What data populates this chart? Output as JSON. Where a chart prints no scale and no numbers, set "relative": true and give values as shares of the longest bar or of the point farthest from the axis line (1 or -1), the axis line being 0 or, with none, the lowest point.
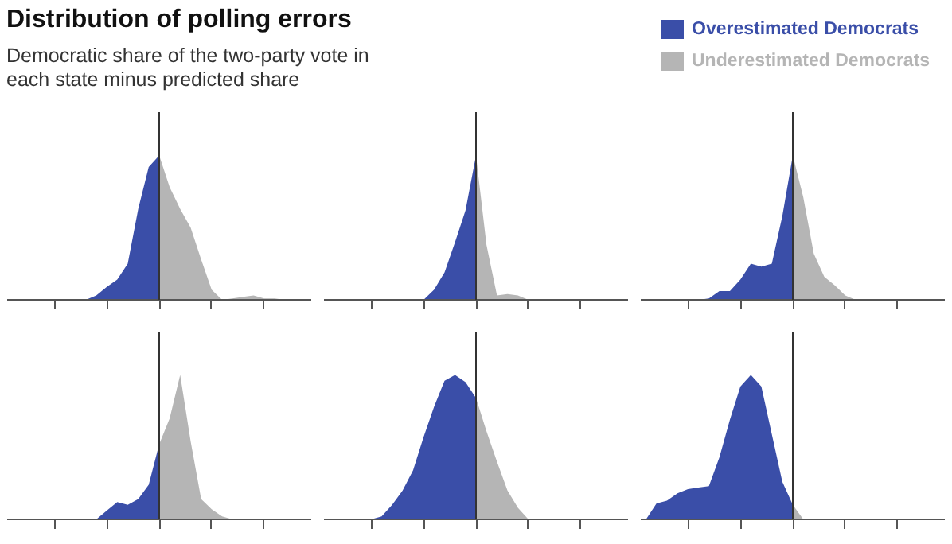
{
  "chart_data": [
    {
      "type": "area",
      "title": "Distribution of polling errors",
      "subtitle": "Democratic share of the two-party vote in each state minus predicted share",
      "relative": true,
      "categories": [
        null,
        null,
        null,
        null,
        null,
        null,
        null,
        null,
        null,
        null,
        null,
        null,
        null,
        null,
        null,
        null,
        null,
        null,
        null,
        null,
        null,
        null,
        null,
        null,
        null,
        null,
        null,
        null,
        null
      ],
      "series": [
        {
          "color": "#3a4ea8",
          "values": [
            0,
            0,
            0,
            0,
            0,
            0,
            0,
            0,
            0.03,
            0.09,
            0.14,
            0.25,
            0.63,
            0.92,
            1,
            null,
            null,
            null,
            null,
            null,
            null,
            null,
            null,
            null,
            null,
            null,
            null,
            null,
            null
          ]
        },
        {
          "color": "#b5b5b5",
          "values": [
            null,
            null,
            null,
            null,
            null,
            null,
            null,
            null,
            null,
            null,
            null,
            null,
            null,
            null,
            1,
            0.78,
            0.63,
            0.5,
            0.28,
            0.07,
            0,
            0.01,
            0.02,
            0.03,
            0.01,
            0.01,
            0,
            0,
            0
          ]
        }
      ]
    },
    {
      "type": "area",
      "relative": true,
      "categories": [
        null,
        null,
        null,
        null,
        null,
        null,
        null,
        null,
        null,
        null,
        null,
        null,
        null,
        null,
        null,
        null,
        null,
        null,
        null,
        null,
        null,
        null,
        null,
        null,
        null,
        null,
        null,
        null,
        null
      ],
      "series": [
        {
          "color": "#3a4ea8",
          "values": [
            0,
            0,
            0,
            0,
            0,
            0,
            0,
            0,
            0,
            0,
            0.07,
            0.19,
            0.4,
            0.62,
            1,
            null,
            null,
            null,
            null,
            null,
            null,
            null,
            null,
            null,
            null,
            null,
            null,
            null,
            null
          ]
        },
        {
          "color": "#b5b5b5",
          "values": [
            null,
            null,
            null,
            null,
            null,
            null,
            null,
            null,
            null,
            null,
            null,
            null,
            null,
            null,
            1,
            0.38,
            0.03,
            0.04,
            0.03,
            0,
            0,
            0,
            0,
            0,
            0,
            0,
            0,
            0,
            0
          ]
        }
      ]
    },
    {
      "type": "area",
      "relative": true,
      "legend": "top",
      "categories": [
        null,
        null,
        null,
        null,
        null,
        null,
        null,
        null,
        null,
        null,
        null,
        null,
        null,
        null,
        null,
        null,
        null,
        null,
        null,
        null,
        null,
        null,
        null,
        null,
        null,
        null,
        null,
        null,
        null
      ],
      "series": [
        {
          "name": "Overestimated Democrats",
          "color": "#3a4ea8",
          "values": [
            0,
            0,
            0,
            0,
            0,
            0,
            0.01,
            0.06,
            0.06,
            0.14,
            0.25,
            0.23,
            0.25,
            0.58,
            1,
            null,
            null,
            null,
            null,
            null,
            null,
            null,
            null,
            null,
            null,
            null,
            null,
            null,
            null
          ]
        },
        {
          "name": "Underestimated Democrats",
          "color": "#b5b5b5",
          "values": [
            null,
            null,
            null,
            null,
            null,
            null,
            null,
            null,
            null,
            null,
            null,
            null,
            null,
            null,
            1,
            0.71,
            0.32,
            0.16,
            0.1,
            0.03,
            0,
            0,
            0,
            0,
            0,
            0,
            0,
            0,
            0
          ]
        }
      ]
    },
    {
      "type": "area",
      "relative": true,
      "categories": [
        null,
        null,
        null,
        null,
        null,
        null,
        null,
        null,
        null,
        null,
        null,
        null,
        null,
        null,
        null,
        null,
        null,
        null,
        null,
        null,
        null,
        null,
        null,
        null,
        null,
        null,
        null,
        null,
        null
      ],
      "series": [
        {
          "color": "#3a4ea8",
          "values": [
            0,
            0,
            0,
            0,
            0,
            0,
            0,
            0,
            0,
            0.06,
            0.12,
            0.1,
            0.14,
            0.24,
            0.52,
            null,
            null,
            null,
            null,
            null,
            null,
            null,
            null,
            null,
            null,
            null,
            null,
            null,
            null
          ]
        },
        {
          "color": "#b5b5b5",
          "values": [
            null,
            null,
            null,
            null,
            null,
            null,
            null,
            null,
            null,
            null,
            null,
            null,
            null,
            null,
            0.52,
            0.7,
            1,
            0.54,
            0.14,
            0.07,
            0.02,
            0,
            0,
            0,
            0,
            0,
            0,
            0,
            0
          ]
        }
      ]
    },
    {
      "type": "area",
      "relative": true,
      "categories": [
        null,
        null,
        null,
        null,
        null,
        null,
        null,
        null,
        null,
        null,
        null,
        null,
        null,
        null,
        null,
        null,
        null,
        null,
        null,
        null,
        null,
        null,
        null,
        null,
        null,
        null,
        null,
        null,
        null
      ],
      "series": [
        {
          "color": "#3a4ea8",
          "values": [
            0,
            0,
            0,
            0,
            0,
            0.02,
            0.1,
            0.2,
            0.34,
            0.57,
            0.78,
            0.96,
            1,
            0.95,
            0.84,
            null,
            null,
            null,
            null,
            null,
            null,
            null,
            null,
            null,
            null,
            null,
            null,
            null,
            null
          ]
        },
        {
          "color": "#b5b5b5",
          "values": [
            null,
            null,
            null,
            null,
            null,
            null,
            null,
            null,
            null,
            null,
            null,
            null,
            null,
            null,
            0.84,
            0.61,
            0.4,
            0.2,
            0.08,
            0,
            0,
            0,
            0,
            0,
            0,
            0,
            0,
            0,
            0
          ]
        }
      ]
    },
    {
      "type": "area",
      "relative": true,
      "categories": [
        null,
        null,
        null,
        null,
        null,
        null,
        null,
        null,
        null,
        null,
        null,
        null,
        null,
        null,
        null,
        null,
        null,
        null,
        null,
        null,
        null,
        null,
        null,
        null,
        null,
        null,
        null,
        null,
        null
      ],
      "series": [
        {
          "color": "#3a4ea8",
          "values": [
            0,
            0.11,
            0.13,
            0.18,
            0.21,
            0.22,
            0.23,
            0.43,
            0.69,
            0.92,
            1,
            0.92,
            0.59,
            0.26,
            0.1,
            null,
            null,
            null,
            null,
            null,
            null,
            null,
            null,
            null,
            null,
            null,
            null,
            null,
            null
          ]
        },
        {
          "color": "#b5b5b5",
          "values": [
            null,
            null,
            null,
            null,
            null,
            null,
            null,
            null,
            null,
            null,
            null,
            null,
            null,
            null,
            0.1,
            0,
            0,
            0,
            0,
            0,
            0,
            0,
            0,
            0,
            0,
            0,
            0,
            0,
            0
          ]
        }
      ]
    }
  ]
}
